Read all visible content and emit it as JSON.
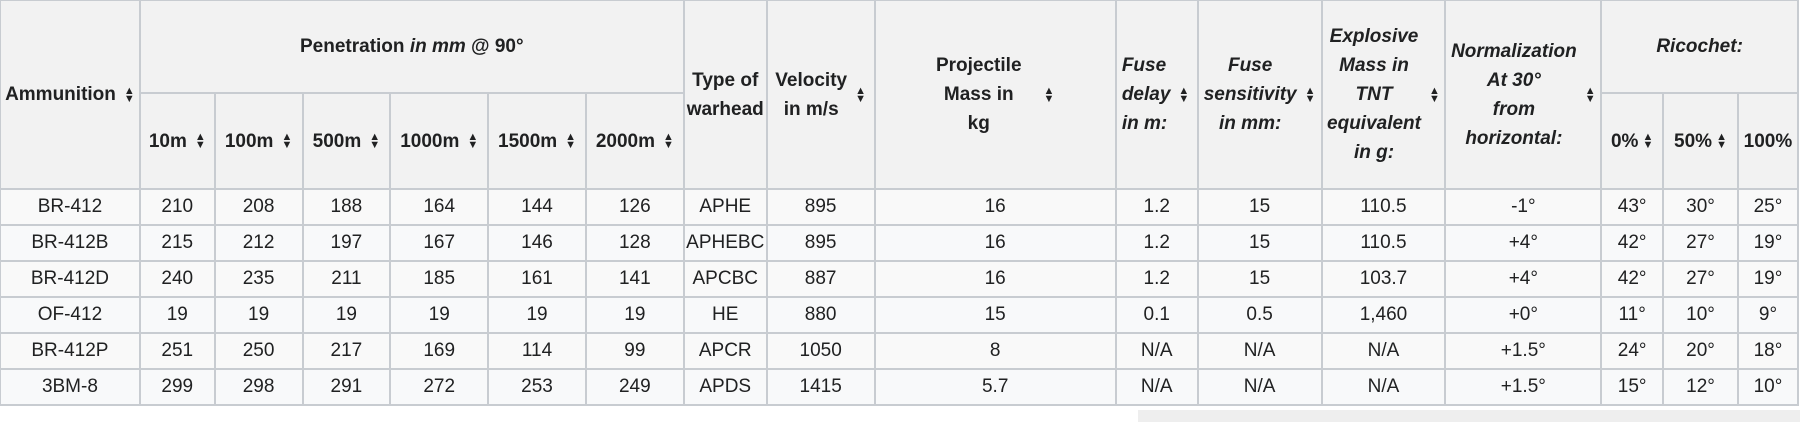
{
  "table": {
    "headers": {
      "ammunition": "Ammunition",
      "penetration_prefix": "Penetration ",
      "penetration_italic": "in mm",
      "penetration_suffix": " @ 90°",
      "pen_10m": "10m",
      "pen_100m": "100m",
      "pen_500m": "500m",
      "pen_1000m": "1000m",
      "pen_1500m": "1500m",
      "pen_2000m": "2000m",
      "warhead_line1": "Type of",
      "warhead_line2": "warhead",
      "velocity_line1": "Velocity",
      "velocity_line2": "in m/s",
      "mass_line1": "Projectile",
      "mass_line2": "Mass in",
      "mass_line3": "kg",
      "fuse_delay_line1": "Fuse",
      "fuse_delay_line2": "delay",
      "fuse_delay_line3": "in m:",
      "fuse_sens_line1": "Fuse",
      "fuse_sens_line2": "sensitivity",
      "fuse_sens_line3": "in mm:",
      "explosive_line1": "Explosive",
      "explosive_line2": "Mass in",
      "explosive_line3": "TNT",
      "explosive_line4": "equivalent",
      "explosive_line5": "in g:",
      "norm_line1": "Normalization",
      "norm_line2": "At 30°",
      "norm_line3": "from",
      "norm_line4": "horizontal:",
      "ricochet": "Ricochet:",
      "ric_0": "0%",
      "ric_50": "50%",
      "ric_100": "100%"
    },
    "rows": [
      [
        "BR-412",
        "210",
        "208",
        "188",
        "164",
        "144",
        "126",
        "APHE",
        "895",
        "16",
        "1.2",
        "15",
        "110.5",
        "-1°",
        "43°",
        "30°",
        "25°"
      ],
      [
        "BR-412B",
        "215",
        "212",
        "197",
        "167",
        "146",
        "128",
        "APHEBC",
        "895",
        "16",
        "1.2",
        "15",
        "110.5",
        "+4°",
        "42°",
        "27°",
        "19°"
      ],
      [
        "BR-412D",
        "240",
        "235",
        "211",
        "185",
        "161",
        "141",
        "APCBC",
        "887",
        "16",
        "1.2",
        "15",
        "103.7",
        "+4°",
        "42°",
        "27°",
        "19°"
      ],
      [
        "OF-412",
        "19",
        "19",
        "19",
        "19",
        "19",
        "19",
        "HE",
        "880",
        "15",
        "0.1",
        "0.5",
        "1,460",
        "+0°",
        "11°",
        "10°",
        "9°"
      ],
      [
        "BR-412P",
        "251",
        "250",
        "217",
        "169",
        "114",
        "99",
        "APCR",
        "1050",
        "8",
        "N/A",
        "N/A",
        "N/A",
        "+1.5°",
        "24°",
        "20°",
        "18°"
      ],
      [
        "3BM-8",
        "299",
        "298",
        "291",
        "272",
        "253",
        "249",
        "APDS",
        "1415",
        "5.7",
        "N/A",
        "N/A",
        "N/A",
        "+1.5°",
        "15°",
        "12°",
        "10°"
      ]
    ],
    "sort_icon": "sort-up-down-icon"
  }
}
